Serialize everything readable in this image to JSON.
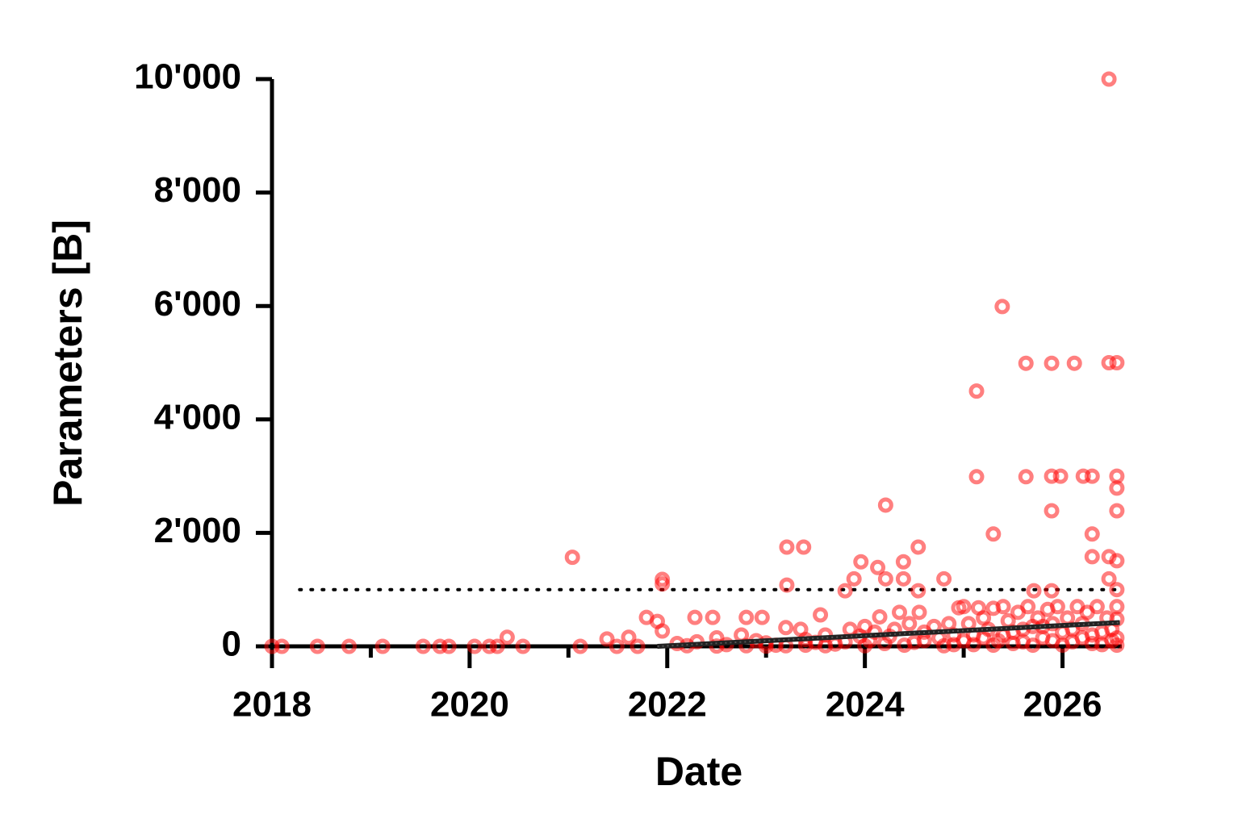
{
  "chart_data": {
    "type": "scatter",
    "x_label": "Date",
    "y_label": "Parameters [B]",
    "xlim": [
      2018,
      2026.6
    ],
    "ylim": [
      0,
      10000
    ],
    "xticks": [
      2018,
      2020,
      2022,
      2024,
      2026
    ],
    "xminor_ticks": [
      2019,
      2021,
      2023,
      2025
    ],
    "yticks": [
      0,
      {
        "value": 2000,
        "label": "2'000"
      },
      {
        "value": 4000,
        "label": "4'000"
      },
      {
        "value": 6000,
        "label": "6'000"
      },
      {
        "value": 8000,
        "label": "8'000"
      },
      {
        "value": 10000,
        "label": "10'000"
      }
    ],
    "reference_line": {
      "y": 1000,
      "x": [
        2018.28,
        2026.6
      ]
    },
    "trend_line": {
      "x": [
        2021.9,
        2026.58
      ],
      "y": [
        0,
        420
      ]
    },
    "series": [
      {
        "color": "#ff0000",
        "x": [
          2018.0,
          2018.1,
          2018.46,
          2018.78,
          2019.12,
          2019.53,
          2019.7,
          2019.79,
          2020.05,
          2020.2,
          2020.28,
          2020.38,
          2020.54,
          2021.04,
          2021.12,
          2021.39,
          2021.49,
          2021.61,
          2021.7,
          2021.79,
          2021.9,
          2021.95,
          2021.95,
          2021.95,
          2022.28,
          2022.46,
          2022.8,
          2022.96,
          2023.21,
          2023.38,
          2023.21,
          2023.55,
          2023.8,
          2023.89,
          2023.96,
          2024.13,
          2024.21,
          2024.21,
          2024.39,
          2024.39,
          2024.54,
          2024.54,
          2024.8,
          2025.13,
          2025.13,
          2025.3,
          2025.39,
          2025.63,
          2025.63,
          2025.71,
          2025.89,
          2025.89,
          2025.89,
          2025.89,
          2025.98,
          2026.12,
          2026.21,
          2026.3,
          2026.3,
          2026.3,
          2026.47,
          2026.47,
          2026.55,
          2026.55,
          2026.55,
          2026.55,
          2026.55,
          2026.47,
          2026.55,
          2026.47,
          2022.1,
          2022.3,
          2022.5,
          2022.6,
          2022.75,
          2022.9,
          2023.0,
          2023.1,
          2023.2,
          2023.35,
          2023.4,
          2023.5,
          2023.6,
          2023.7,
          2023.85,
          2023.95,
          2024.0,
          2024.05,
          2024.1,
          2024.15,
          2024.25,
          2024.3,
          2024.35,
          2024.45,
          2024.5,
          2024.55,
          2024.6,
          2024.7,
          2024.75,
          2024.85,
          2024.9,
          2024.95,
          2025.0,
          2025.05,
          2025.1,
          2025.15,
          2025.2,
          2025.25,
          2025.3,
          2025.35,
          2025.4,
          2025.45,
          2025.5,
          2025.55,
          2025.6,
          2025.65,
          2025.7,
          2025.75,
          2025.8,
          2025.85,
          2025.9,
          2025.95,
          2026.0,
          2026.05,
          2026.1,
          2026.15,
          2026.2,
          2026.25,
          2026.3,
          2026.35,
          2026.4,
          2026.45,
          2026.5,
          2026.55,
          2026.55,
          2026.55,
          2026.55,
          2026.5,
          2026.4,
          2026.3,
          2026.2,
          2026.1,
          2026.0,
          2025.9,
          2025.8,
          2025.7,
          2025.6,
          2025.5,
          2025.4,
          2025.3,
          2025.2,
          2025.1,
          2025.0,
          2024.9,
          2024.8,
          2024.6,
          2024.4,
          2024.2,
          2024.0,
          2023.8,
          2023.6,
          2023.4,
          2023.2,
          2023.0,
          2022.8,
          2022.5,
          2022.2
        ],
        "values": [
          0,
          0,
          0,
          0,
          0,
          0,
          0,
          0,
          0,
          0,
          0,
          160,
          0,
          1570,
          0,
          130,
          0,
          160,
          0,
          510,
          440,
          1180,
          1100,
          270,
          510,
          510,
          510,
          510,
          1750,
          1750,
          1080,
          555,
          980,
          1190,
          1490,
          1390,
          2490,
          1190,
          1490,
          1190,
          1750,
          980,
          1190,
          4500,
          2990,
          1980,
          5990,
          4990,
          2990,
          980,
          4990,
          3000,
          2390,
          980,
          3000,
          4990,
          3000,
          3000,
          1980,
          1580,
          10000,
          5000,
          5000,
          3000,
          2790,
          2390,
          1510,
          1580,
          1000,
          1190,
          50,
          80,
          150,
          30,
          200,
          100,
          60,
          20,
          330,
          300,
          120,
          70,
          200,
          40,
          300,
          180,
          350,
          100,
          250,
          520,
          180,
          300,
          600,
          400,
          70,
          600,
          250,
          350,
          150,
          400,
          30,
          680,
          700,
          400,
          200,
          680,
          500,
          300,
          670,
          100,
          700,
          450,
          250,
          600,
          80,
          700,
          350,
          500,
          150,
          650,
          400,
          700,
          250,
          500,
          80,
          700,
          400,
          600,
          200,
          700,
          30,
          500,
          300,
          700,
          480,
          150,
          20,
          100,
          250,
          50,
          150,
          300,
          20,
          100,
          350,
          20,
          300,
          50,
          200,
          20,
          150,
          30,
          100,
          200,
          10,
          100,
          20,
          50,
          10,
          80,
          10,
          20,
          10,
          5,
          10,
          5,
          10
        ]
      }
    ]
  }
}
